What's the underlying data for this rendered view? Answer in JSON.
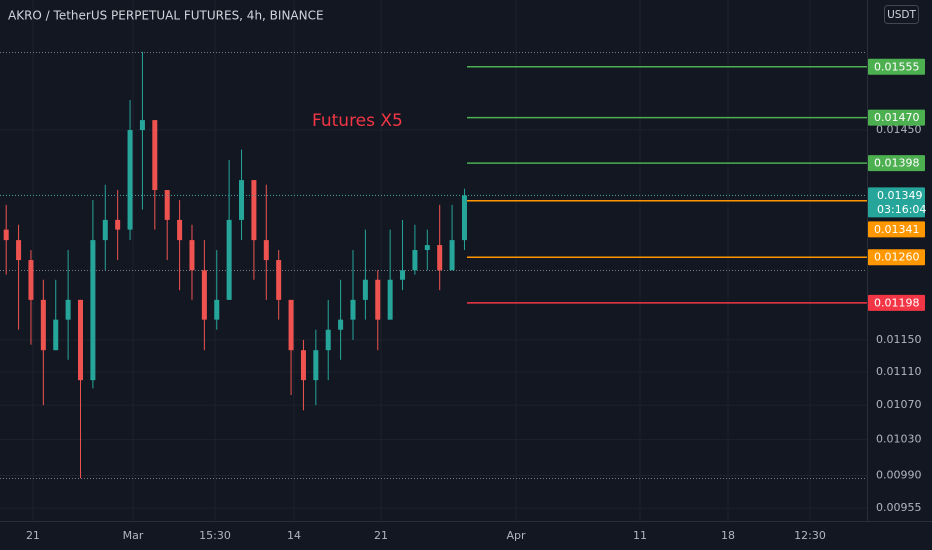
{
  "chart_data": {
    "type": "candlestick",
    "title": "AKRO / TetherUS PERPETUAL FUTURES, 4h, BINANCE",
    "annotation": "Futures X5",
    "currency": "USDT",
    "log_scale": true,
    "grid": true,
    "up_color": "#26a69a",
    "down_color": "#ef5350",
    "open": [
      0.01299,
      0.01284,
      0.01256,
      0.01202,
      0.01137,
      0.01176,
      0.01202,
      0.011,
      0.01284,
      0.01313,
      0.01299,
      0.0145,
      0.01466,
      0.01357,
      0.01313,
      0.01284,
      0.01242,
      0.01176,
      0.01202,
      0.01313,
      0.01372,
      0.01284,
      0.01256,
      0.01202,
      0.01137,
      0.011,
      0.01137,
      0.01163,
      0.01176,
      0.01202,
      0.01229,
      0.01176,
      0.01229,
      0.01242,
      0.0127,
      0.01277,
      0.01242,
      0.01284
    ],
    "high": [
      0.01335,
      0.01306,
      0.0127,
      0.01229,
      0.01229,
      0.0127,
      0.01202,
      0.01342,
      0.01365,
      0.01357,
      0.01499,
      0.01581,
      0.01466,
      0.01357,
      0.01342,
      0.01306,
      0.01284,
      0.0127,
      0.01403,
      0.01419,
      0.01372,
      0.01365,
      0.0127,
      0.01202,
      0.0115,
      0.01163,
      0.01202,
      0.01229,
      0.0127,
      0.01299,
      0.01242,
      0.01299,
      0.01313,
      0.01306,
      0.01299,
      0.01335,
      0.01335,
      0.01359
    ],
    "low": [
      0.01236,
      0.01163,
      0.01144,
      0.0107,
      0.01137,
      0.01125,
      0.00987,
      0.0109,
      0.01242,
      0.01256,
      0.01284,
      0.01328,
      0.01299,
      0.01256,
      0.01215,
      0.01202,
      0.01137,
      0.01163,
      0.01202,
      0.01284,
      0.01229,
      0.01202,
      0.01176,
      0.01082,
      0.01064,
      0.0107,
      0.011,
      0.01125,
      0.0115,
      0.01176,
      0.01137,
      0.01176,
      0.01215,
      0.01236,
      0.01242,
      0.01215,
      0.01242,
      0.0127
    ],
    "close": [
      0.01284,
      0.01256,
      0.01202,
      0.01137,
      0.01176,
      0.01202,
      0.011,
      0.01284,
      0.01313,
      0.01299,
      0.0145,
      0.01466,
      0.01357,
      0.01313,
      0.01284,
      0.01242,
      0.01176,
      0.01202,
      0.01313,
      0.01372,
      0.01284,
      0.01256,
      0.01202,
      0.01137,
      0.011,
      0.01137,
      0.01163,
      0.01176,
      0.01202,
      0.01229,
      0.01176,
      0.01229,
      0.01242,
      0.0127,
      0.01277,
      0.01242,
      0.01284,
      0.01349
    ],
    "xlim": [
      -0.5,
      69.5
    ],
    "xticks": [
      {
        "value": 2.16,
        "label": "21"
      },
      {
        "value": 10.24,
        "label": "Mar"
      },
      {
        "value": 16.86,
        "label": "15:30"
      },
      {
        "value": 23.24,
        "label": "14"
      },
      {
        "value": 30.26,
        "label": "21"
      },
      {
        "value": 41.16,
        "label": "Apr"
      },
      {
        "value": 51.17,
        "label": "11"
      },
      {
        "value": 58.28,
        "label": "18"
      },
      {
        "value": 64.9,
        "label": "12:30"
      }
    ],
    "ylim": [
      0.009415,
      0.01674
    ],
    "yticks": [
      {
        "value": 0.0145,
        "label": "0.01450"
      },
      {
        "value": 0.0115,
        "label": "0.01150"
      },
      {
        "value": 0.0111,
        "label": "0.01110"
      },
      {
        "value": 0.0107,
        "label": "0.01070"
      },
      {
        "value": 0.0103,
        "label": "0.01030"
      },
      {
        "value": 0.0099,
        "label": "0.00990"
      },
      {
        "value": 0.00955,
        "label": "0.00955"
      }
    ],
    "levels": {
      "values": [
        0.01555,
        0.0147,
        0.01398,
        0.01341,
        0.0126,
        0.01198
      ],
      "value_labels": [
        "0.01555",
        "0.01470",
        "0.01398",
        "0.01341",
        "0.01260",
        "0.01198"
      ],
      "colors": [
        "#4caf50",
        "#4caf50",
        "#4caf50",
        "#ff9800",
        "#ff9800",
        "#f23645"
      ]
    },
    "dotted_lines": [
      0.01581,
      0.01349,
      0.01242,
      0.00987
    ],
    "last_price": 0.01349,
    "countdown": "03:16:04",
    "last_color": "#26a69a"
  }
}
